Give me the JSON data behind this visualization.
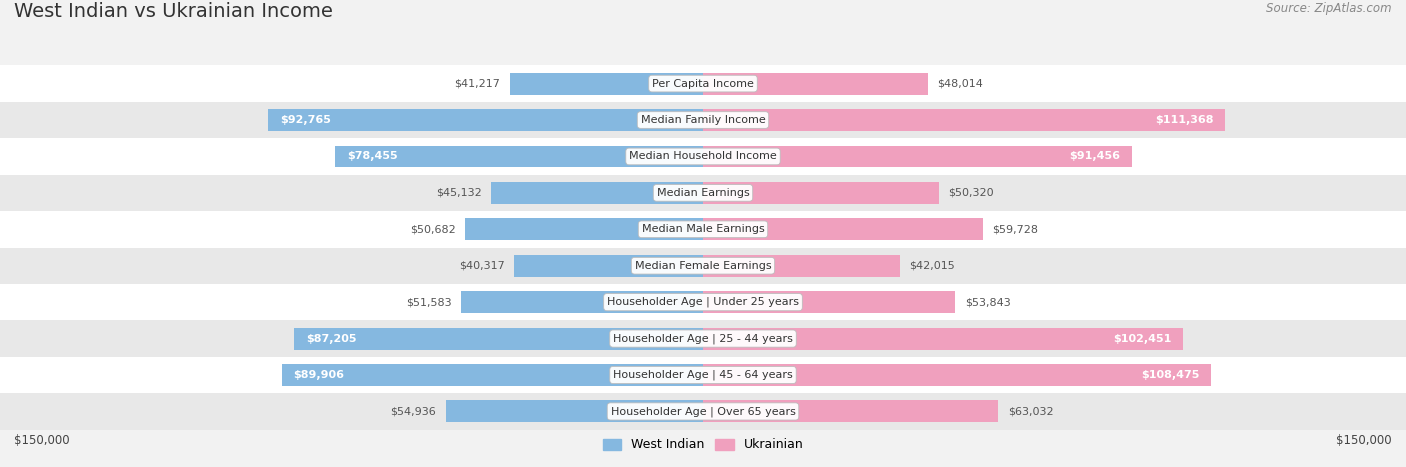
{
  "title": "West Indian vs Ukrainian Income",
  "source": "Source: ZipAtlas.com",
  "categories": [
    "Per Capita Income",
    "Median Family Income",
    "Median Household Income",
    "Median Earnings",
    "Median Male Earnings",
    "Median Female Earnings",
    "Householder Age | Under 25 years",
    "Householder Age | 25 - 44 years",
    "Householder Age | 45 - 64 years",
    "Householder Age | Over 65 years"
  ],
  "west_indian": [
    41217,
    92765,
    78455,
    45132,
    50682,
    40317,
    51583,
    87205,
    89906,
    54936
  ],
  "ukrainian": [
    48014,
    111368,
    91456,
    50320,
    59728,
    42015,
    53843,
    102451,
    108475,
    63032
  ],
  "west_indian_color": "#85b8e0",
  "ukrainian_color": "#f0a0be",
  "wi_dark_threshold": 70000,
  "uk_dark_threshold": 88000,
  "bar_height": 0.6,
  "xlim": 150000,
  "background_color": "#f2f2f2",
  "row_colors": [
    "#ffffff",
    "#e8e8e8"
  ],
  "label_fontsize": 8.0,
  "title_fontsize": 14,
  "value_fontsize": 8.0,
  "legend_fontsize": 9,
  "source_fontsize": 8.5,
  "axis_label_fontsize": 8.5
}
